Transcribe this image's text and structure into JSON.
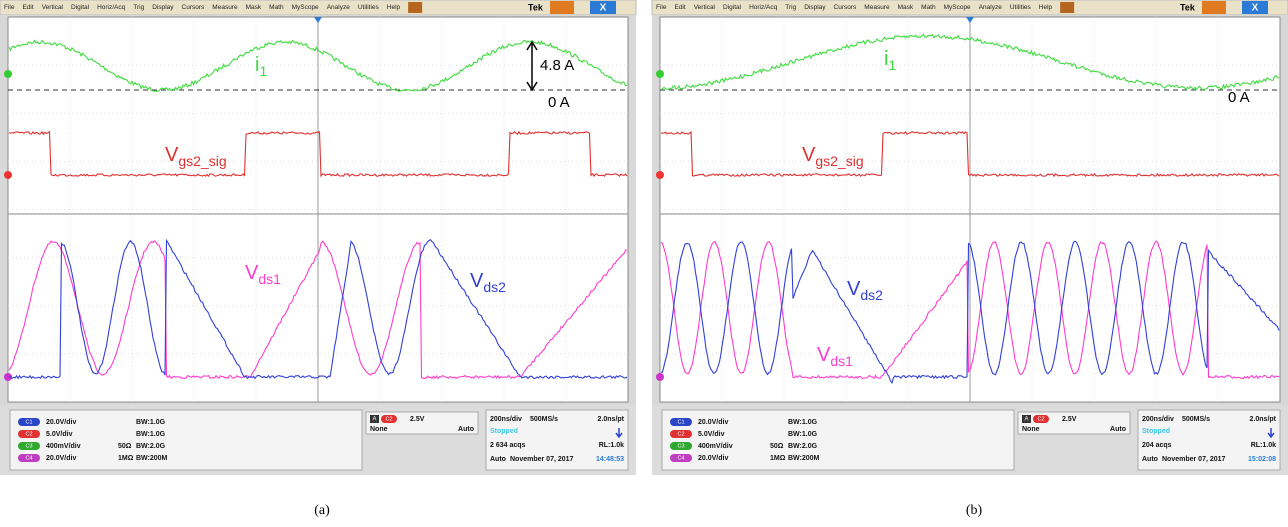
{
  "panels": [
    {
      "menu": [
        "File",
        "Edit",
        "Vertical",
        "Digital",
        "Horiz/Acq",
        "Trig",
        "Display",
        "Cursors",
        "Measure",
        "Mask",
        "Math",
        "MyScope",
        "Analyze",
        "Utilities",
        "Help"
      ],
      "brand": "Tek",
      "close": "X",
      "annotations": {
        "i1": {
          "main": "i",
          "sub": "1"
        },
        "amplitude": "4.8 A",
        "zero": "0 A",
        "vgs2": {
          "main": "V",
          "sub": "gs2_sig"
        },
        "vds1": {
          "main": "V",
          "sub": "ds1"
        },
        "vds2": {
          "main": "V",
          "sub": "ds2"
        }
      },
      "channels": [
        {
          "badge": "C1",
          "scale": "20.0V/div",
          "bandwidth": "BW:1.0G"
        },
        {
          "badge": "C2",
          "scale": "5.0V/div",
          "bandwidth": "BW:1.0G"
        },
        {
          "badge": "C3",
          "scale": "400mV/div",
          "impedance": "50Ω",
          "bandwidth": "BW:2.0G"
        },
        {
          "badge": "C4",
          "scale": "20.0V/div",
          "impedance": "1MΩ",
          "bandwidth": "BW:200M"
        }
      ],
      "trigger": {
        "mode_badge": "A",
        "source": "C2",
        "level": "2.5V",
        "coupling": "None",
        "sweep": "Auto"
      },
      "acquisition": {
        "timebase": "200ns/div",
        "rate": "500MS/s",
        "resolution": "2.0ns/pt",
        "state": "Stopped",
        "count": "2 634 acqs",
        "record": "RL:1.0k",
        "mode": "Auto",
        "date": "November 07, 2017",
        "time": "14:48:53"
      },
      "caption": "(a)"
    },
    {
      "menu": [
        "File",
        "Edit",
        "Vertical",
        "Digital",
        "Horiz/Acq",
        "Trig",
        "Display",
        "Cursors",
        "Measure",
        "Mask",
        "Math",
        "MyScope",
        "Analyze",
        "Utilities",
        "Help"
      ],
      "brand": "Tek",
      "close": "X",
      "annotations": {
        "i1": {
          "main": "i",
          "sub": "1"
        },
        "zero": "0 A",
        "vgs2": {
          "main": "V",
          "sub": "gs2_sig"
        },
        "vds1": {
          "main": "V",
          "sub": "ds1"
        },
        "vds2": {
          "main": "V",
          "sub": "ds2"
        }
      },
      "channels": [
        {
          "badge": "C1",
          "scale": "20.0V/div",
          "bandwidth": "BW:1.0G"
        },
        {
          "badge": "C2",
          "scale": "5.0V/div",
          "bandwidth": "BW:1.0G"
        },
        {
          "badge": "C3",
          "scale": "400mV/div",
          "impedance": "50Ω",
          "bandwidth": "BW:2.0G"
        },
        {
          "badge": "C4",
          "scale": "20.0V/div",
          "impedance": "1MΩ",
          "bandwidth": "BW:200M"
        }
      ],
      "trigger": {
        "mode_badge": "A",
        "source": "C2",
        "level": "2.5V",
        "coupling": "None",
        "sweep": "Auto"
      },
      "acquisition": {
        "timebase": "200ns/div",
        "rate": "500MS/s",
        "resolution": "2.0ns/pt",
        "state": "Stopped",
        "count": "204 acqs",
        "record": "RL:1.0k",
        "mode": "Auto",
        "date": "November 07, 2017",
        "time": "15:02:08"
      },
      "caption": "(b)"
    }
  ]
}
